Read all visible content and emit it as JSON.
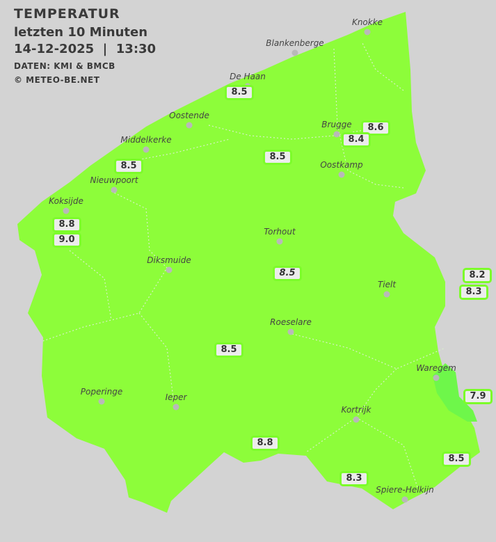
{
  "header": {
    "title": "TEMPERATUR",
    "subtitle": "letzten 10 Minuten",
    "datetime": "14-12-2025  |  13:30",
    "source": "DATEN: KMI & BMCB",
    "copyright": "© METEO-BE.NET"
  },
  "colors": {
    "background": "#d3d3d3",
    "region_fill": "#8dfd3a",
    "cold_patch": "#6ef74a",
    "box_border": "#7cfc2a",
    "box_fill": "#ececec"
  },
  "cities": [
    {
      "name": "Knokke"
    },
    {
      "name": "Blankenberge"
    },
    {
      "name": "De Haan"
    },
    {
      "name": "Oostende"
    },
    {
      "name": "Brugge"
    },
    {
      "name": "Middelkerke"
    },
    {
      "name": "Oostkamp"
    },
    {
      "name": "Nieuwpoort"
    },
    {
      "name": "Koksijde"
    },
    {
      "name": "Torhout"
    },
    {
      "name": "Diksmuide"
    },
    {
      "name": "Tielt"
    },
    {
      "name": "Roeselare"
    },
    {
      "name": "Waregem"
    },
    {
      "name": "Poperinge"
    },
    {
      "name": "Ieper"
    },
    {
      "name": "Kortrijk"
    },
    {
      "name": "Spiere-Helkijn"
    }
  ],
  "readings": [
    {
      "value": "8.5"
    },
    {
      "value": "8.6"
    },
    {
      "value": "8.4"
    },
    {
      "value": "8.5"
    },
    {
      "value": "8.5"
    },
    {
      "value": "8.8"
    },
    {
      "value": "9.0"
    },
    {
      "value": "8.5",
      "italic": true
    },
    {
      "value": "8.2"
    },
    {
      "value": "8.3"
    },
    {
      "value": "8.5"
    },
    {
      "value": "7.9"
    },
    {
      "value": "8.8"
    },
    {
      "value": "8.5"
    },
    {
      "value": "8.3"
    }
  ]
}
